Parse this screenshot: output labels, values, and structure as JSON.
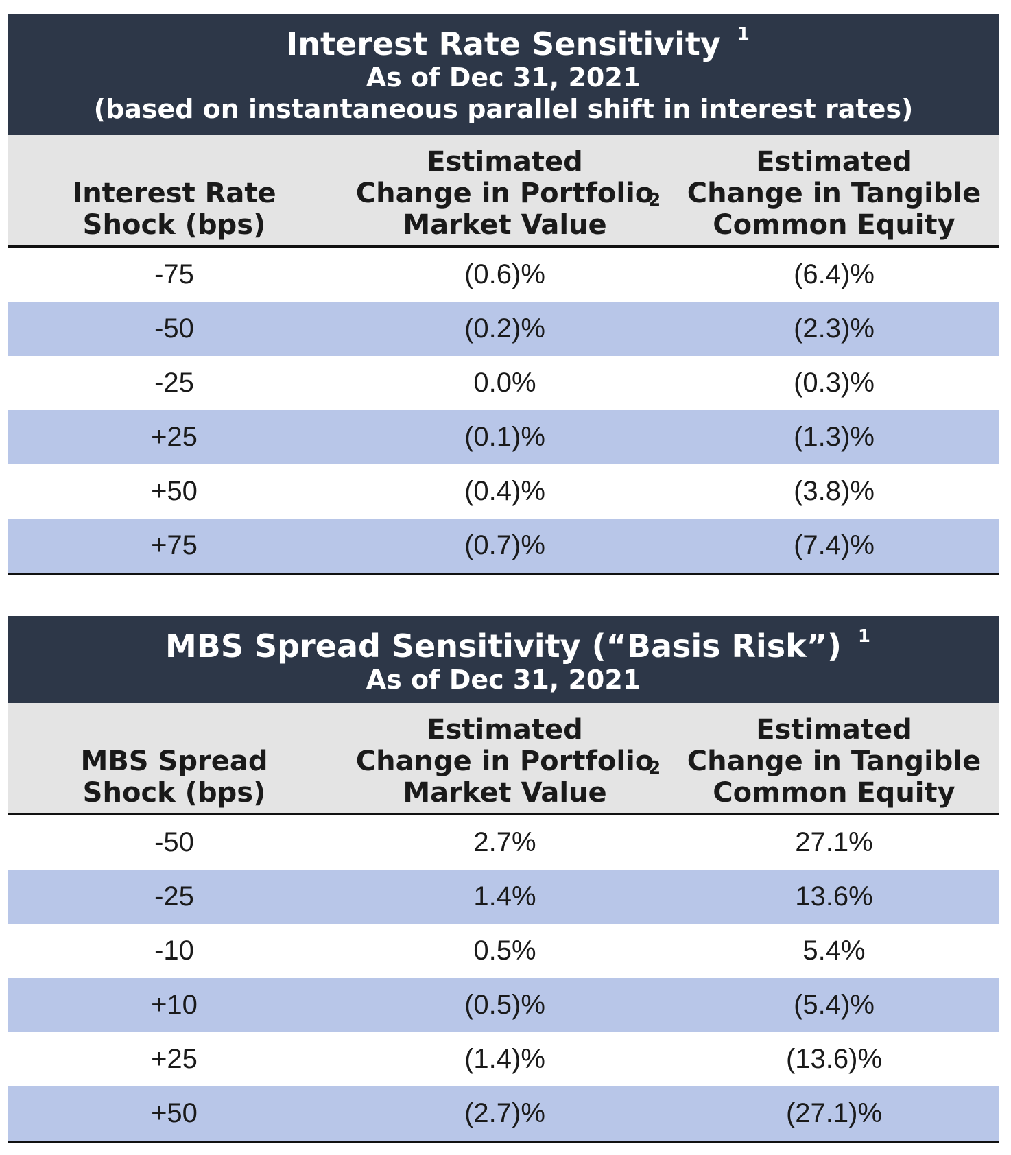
{
  "interest_rate_table": {
    "title": "Interest Rate Sensitivity",
    "title_footnote": "1",
    "as_of": "As of Dec 31, 2021",
    "note": "(based on instantaneous parallel shift in interest rates)",
    "headers": {
      "col1_lines": [
        "Interest Rate",
        "Shock (bps)"
      ],
      "col2_lines": [
        "Estimated",
        "Change in Portfolio",
        "Market Value"
      ],
      "col2_footnote": "2",
      "col3_lines": [
        "Estimated",
        "Change in Tangible",
        "Common Equity"
      ]
    },
    "rows": [
      {
        "shock": "-75",
        "portfolio": "(0.6)%",
        "equity": "(6.4)%"
      },
      {
        "shock": "-50",
        "portfolio": "(0.2)%",
        "equity": "(2.3)%"
      },
      {
        "shock": "-25",
        "portfolio": "0.0%",
        "equity": "(0.3)%"
      },
      {
        "shock": "+25",
        "portfolio": "(0.1)%",
        "equity": "(1.3)%"
      },
      {
        "shock": "+50",
        "portfolio": "(0.4)%",
        "equity": "(3.8)%"
      },
      {
        "shock": "+75",
        "portfolio": "(0.7)%",
        "equity": "(7.4)%"
      }
    ]
  },
  "mbs_spread_table": {
    "title": "MBS Spread Sensitivity (“Basis Risk”)",
    "title_footnote": "1",
    "as_of": "As of Dec 31, 2021",
    "headers": {
      "col1_lines": [
        "MBS Spread",
        "Shock (bps)"
      ],
      "col2_lines": [
        "Estimated",
        "Change in Portfolio",
        "Market Value"
      ],
      "col2_footnote": "2",
      "col3_lines": [
        "Estimated",
        "Change in Tangible",
        "Common Equity"
      ]
    },
    "rows": [
      {
        "shock": "-50",
        "portfolio": "2.7%",
        "equity": "27.1%"
      },
      {
        "shock": "-25",
        "portfolio": "1.4%",
        "equity": "13.6%"
      },
      {
        "shock": "-10",
        "portfolio": "0.5%",
        "equity": "5.4%"
      },
      {
        "shock": "+10",
        "portfolio": "(0.5)%",
        "equity": "(5.4)%"
      },
      {
        "shock": "+25",
        "portfolio": "(1.4)%",
        "equity": "(13.6)%"
      },
      {
        "shock": "+50",
        "portfolio": "(2.7)%",
        "equity": "(27.1)%"
      }
    ]
  },
  "colors": {
    "title_bg": "#2d3748",
    "header_bg": "#e4e4e4",
    "shaded_row_bg": "#b8c6e8",
    "rule": "#111111"
  }
}
